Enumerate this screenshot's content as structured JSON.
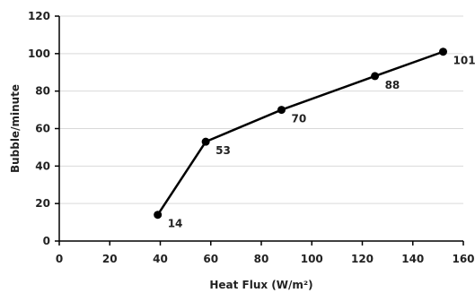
{
  "chart_data": {
    "type": "line",
    "title": "",
    "xlabel": "Heat Flux (W/m²)",
    "ylabel": "Bubble/minute",
    "xlim": [
      0,
      160
    ],
    "ylim": [
      0,
      120
    ],
    "x_ticks": [
      0,
      20,
      40,
      60,
      80,
      100,
      120,
      140,
      160
    ],
    "y_ticks": [
      0,
      20,
      40,
      60,
      80,
      100,
      120
    ],
    "grid": "horizontal",
    "legend": "none",
    "series": [
      {
        "x": [
          39,
          58,
          88,
          125,
          152
        ],
        "y": [
          14,
          53,
          70,
          88,
          101
        ],
        "labels": [
          "14",
          "53",
          "70",
          "88",
          "101"
        ]
      }
    ],
    "colors": {
      "line": "#000000",
      "marker": "#000000",
      "grid": "#d9d9d9",
      "axis": "#000000"
    }
  }
}
